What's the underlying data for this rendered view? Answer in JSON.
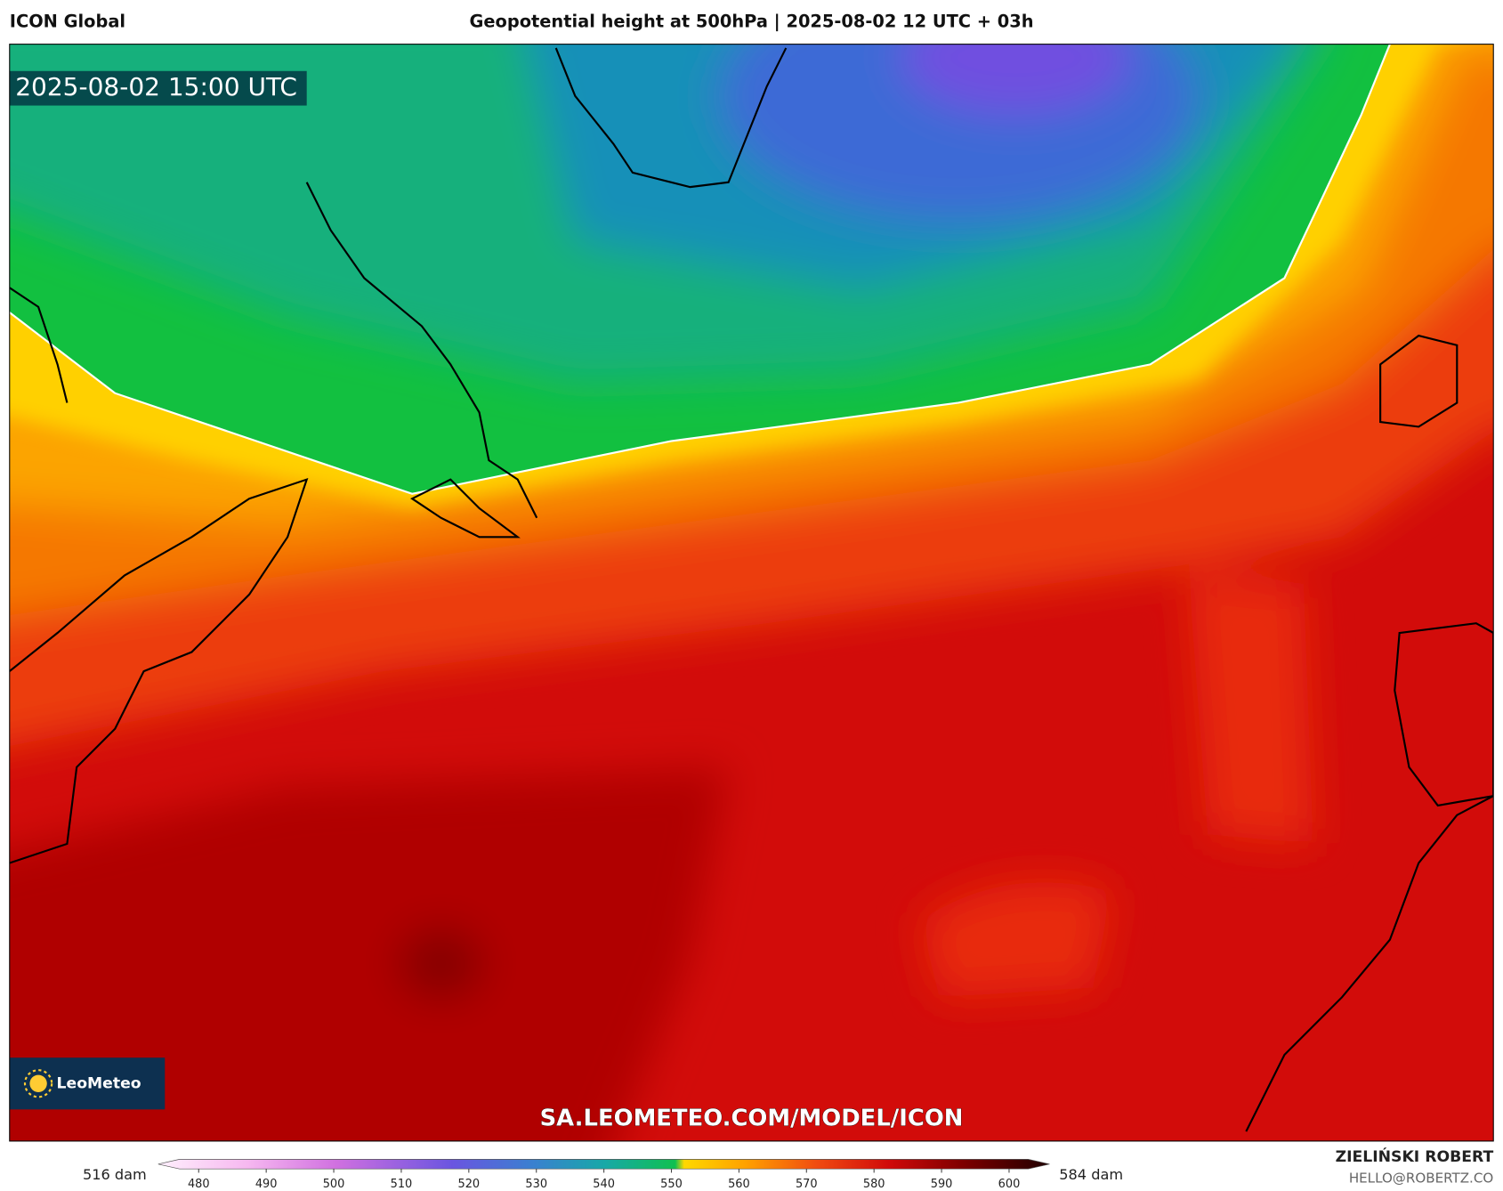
{
  "header": {
    "model": "ICON Global",
    "title": "Geopotential height at 500hPa | 2025-08-02 12 UTC + 03h"
  },
  "map": {
    "timestamp": "2025-08-02 15:00 UTC",
    "logo": "LeoMeteo",
    "url": "SA.LEOMETEO.COM/MODEL/ICON"
  },
  "colorbar": {
    "min_label": "516 dam",
    "max_label": "584 dam",
    "lim": [
      474,
      606
    ],
    "ticks": [
      480,
      490,
      500,
      510,
      520,
      530,
      540,
      550,
      560,
      570,
      580,
      590,
      600
    ]
  },
  "footer": {
    "author": "ZIELIŃSKI ROBERT",
    "email": "HELLO@ROBERTZ.CO"
  }
}
